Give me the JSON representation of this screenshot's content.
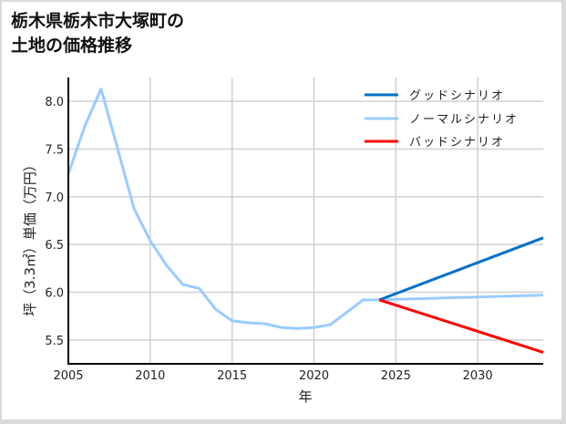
{
  "title_lines": [
    "栃木県栃木市大塚町の",
    "土地の価格推移"
  ],
  "chart_data": {
    "type": "line",
    "title": "栃木県栃木市大塚町の土地の価格推移",
    "xlabel": "年",
    "ylabel": "坪（3.3㎡）単価（万円）",
    "xlim": [
      2005,
      2034
    ],
    "ylim": [
      5.25,
      8.25
    ],
    "x_ticks": [
      2005,
      2010,
      2015,
      2020,
      2025,
      2030
    ],
    "y_ticks": [
      5.5,
      6.0,
      6.5,
      7.0,
      7.5,
      8.0
    ],
    "y_tick_labels": [
      "5.5",
      "6.0",
      "6.5",
      "7.0",
      "7.5",
      "8.0"
    ],
    "grid": true,
    "legend_position": "upper right",
    "series": [
      {
        "name": "ノーマルシナリオ",
        "color": "#99ccff",
        "x": [
          2005,
          2006,
          2007,
          2008,
          2009,
          2010,
          2011,
          2012,
          2013,
          2014,
          2015,
          2016,
          2017,
          2018,
          2019,
          2020,
          2021,
          2022,
          2023,
          2024,
          2034
        ],
        "values": [
          7.24,
          7.74,
          8.13,
          7.51,
          6.88,
          6.54,
          6.28,
          6.08,
          6.04,
          5.82,
          5.7,
          5.68,
          5.67,
          5.63,
          5.62,
          5.63,
          5.66,
          5.79,
          5.92,
          5.92,
          5.97
        ]
      },
      {
        "name": "グッドシナリオ",
        "color": "#0070c8",
        "x": [
          2024,
          2034
        ],
        "values": [
          5.92,
          6.57
        ]
      },
      {
        "name": "バッドシナリオ",
        "color": "#ff0000",
        "x": [
          2024,
          2034
        ],
        "values": [
          5.92,
          5.37
        ]
      }
    ],
    "legend": [
      "グッドシナリオ",
      "ノーマルシナリオ",
      "バッドシナリオ"
    ]
  }
}
